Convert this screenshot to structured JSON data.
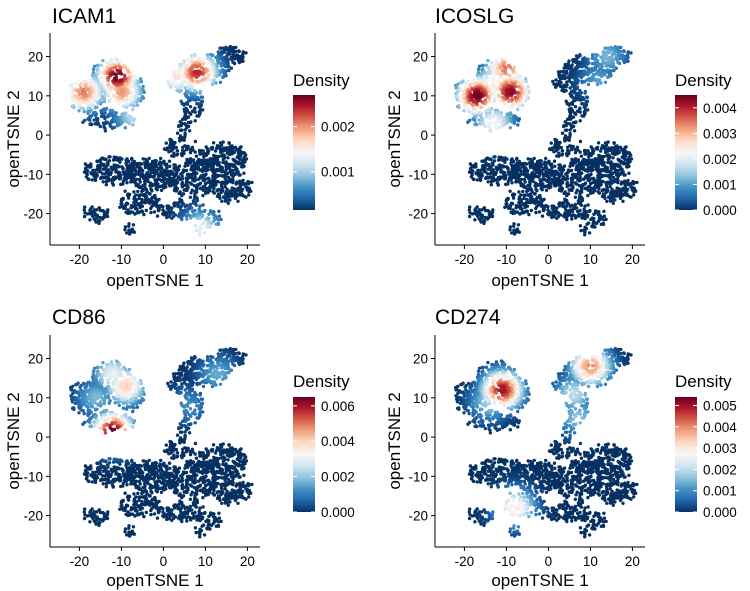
{
  "chart_data": [
    {
      "type": "scatter",
      "title": "ICAM1",
      "xlabel": "openTSNE 1",
      "ylabel": "openTSNE 2",
      "xlim": [
        -27,
        23
      ],
      "ylim": [
        -28,
        26
      ],
      "xticks": [
        -20,
        -10,
        0,
        10,
        20
      ],
      "yticks": [
        -20,
        -10,
        0,
        10,
        20
      ],
      "xtick_labels": [
        "-20",
        "-10",
        "0",
        "10",
        "20"
      ],
      "ytick_labels": [
        "-20",
        "-10",
        "0",
        "10",
        "20"
      ],
      "legend": {
        "title": "Density",
        "position": "right",
        "min": 0.00015,
        "max": 0.0027,
        "breaks": [
          0.001,
          0.002
        ],
        "labels": [
          "0.001",
          "0.002"
        ]
      },
      "hotspots": [
        {
          "x": -11,
          "y": 15,
          "density": 0.0027
        },
        {
          "x": -19,
          "y": 11,
          "density": 0.0021
        },
        {
          "x": -10,
          "y": 11,
          "density": 0.002
        },
        {
          "x": 8,
          "y": 16,
          "density": 0.0024
        },
        {
          "x": 3,
          "y": 15,
          "density": 0.0016
        },
        {
          "x": -7,
          "y": 5,
          "density": 0.0011
        },
        {
          "x": 9,
          "y": -24,
          "density": 0.0013
        }
      ],
      "grid": false
    },
    {
      "type": "scatter",
      "title": "ICOSLG",
      "xlabel": "openTSNE 1",
      "ylabel": "openTSNE 2",
      "xlim": [
        -27,
        23
      ],
      "ylim": [
        -28,
        26
      ],
      "xticks": [
        -20,
        -10,
        0,
        10,
        20
      ],
      "yticks": [
        -20,
        -10,
        0,
        10,
        20
      ],
      "xtick_labels": [
        "-20",
        "-10",
        "0",
        "10",
        "20"
      ],
      "ytick_labels": [
        "-20",
        "-10",
        "0",
        "10",
        "20"
      ],
      "legend": {
        "title": "Density",
        "position": "right",
        "min": 0.0,
        "max": 0.0045,
        "breaks": [
          0.0,
          0.001,
          0.002,
          0.003,
          0.004
        ],
        "labels": [
          "0.000",
          "0.001",
          "0.002",
          "0.003",
          "0.004"
        ]
      },
      "hotspots": [
        {
          "x": -17,
          "y": 10,
          "density": 0.0045
        },
        {
          "x": -9,
          "y": 11,
          "density": 0.0043
        },
        {
          "x": -10,
          "y": 17,
          "density": 0.0035
        },
        {
          "x": -13,
          "y": 13,
          "density": 0.0025
        },
        {
          "x": -13,
          "y": 3,
          "density": 0.0022
        },
        {
          "x": 14,
          "y": 20,
          "density": 0.0012
        },
        {
          "x": 12,
          "y": 14,
          "density": 0.001
        }
      ],
      "grid": false
    },
    {
      "type": "scatter",
      "title": "CD86",
      "xlabel": "openTSNE 1",
      "ylabel": "openTSNE 2",
      "xlim": [
        -27,
        23
      ],
      "ylim": [
        -28,
        26
      ],
      "xticks": [
        -20,
        -10,
        0,
        10,
        20
      ],
      "yticks": [
        -20,
        -10,
        0,
        10,
        20
      ],
      "xtick_labels": [
        "-20",
        "-10",
        "0",
        "10",
        "20"
      ],
      "ytick_labels": [
        "-20",
        "-10",
        "0",
        "10",
        "20"
      ],
      "legend": {
        "title": "Density",
        "position": "right",
        "min": 0.0,
        "max": 0.0065,
        "breaks": [
          0.0,
          0.002,
          0.004,
          0.006
        ],
        "labels": [
          "0.000",
          "0.002",
          "0.004",
          "0.006"
        ]
      },
      "hotspots": [
        {
          "x": -12,
          "y": 1.5,
          "density": 0.0065
        },
        {
          "x": -9,
          "y": 13,
          "density": 0.004
        },
        {
          "x": -12,
          "y": 16,
          "density": 0.003
        },
        {
          "x": -16,
          "y": 10,
          "density": 0.0018
        },
        {
          "x": 13,
          "y": 16,
          "density": 0.0016
        },
        {
          "x": 6,
          "y": 8,
          "density": 0.0012
        }
      ],
      "grid": false
    },
    {
      "type": "scatter",
      "title": "CD274",
      "xlabel": "openTSNE 1",
      "ylabel": "openTSNE 2",
      "xlim": [
        -27,
        23
      ],
      "ylim": [
        -28,
        26
      ],
      "xticks": [
        -20,
        -10,
        0,
        10,
        20
      ],
      "yticks": [
        -20,
        -10,
        0,
        10,
        20
      ],
      "xtick_labels": [
        "-20",
        "-10",
        "0",
        "10",
        "20"
      ],
      "ytick_labels": [
        "-20",
        "-10",
        "0",
        "10",
        "20"
      ],
      "legend": {
        "title": "Density",
        "position": "right",
        "min": 0.0,
        "max": 0.0054,
        "breaks": [
          0.0,
          0.001,
          0.002,
          0.003,
          0.004,
          0.005
        ],
        "labels": [
          "0.000",
          "0.001",
          "0.002",
          "0.003",
          "0.004",
          "0.005"
        ]
      },
      "hotspots": [
        {
          "x": -11,
          "y": 12,
          "density": 0.005
        },
        {
          "x": 10,
          "y": 18,
          "density": 0.004
        },
        {
          "x": -8,
          "y": -18,
          "density": 0.003
        },
        {
          "x": 6,
          "y": 11,
          "density": 0.002
        },
        {
          "x": -14,
          "y": 9,
          "density": 0.0018
        },
        {
          "x": 7,
          "y": 5,
          "density": 0.0016
        }
      ],
      "grid": false
    }
  ],
  "colors": {
    "scale": [
      "#053061",
      "#2166ac",
      "#4393c3",
      "#92c5de",
      "#d1e5f0",
      "#f7f7f7",
      "#fddbc7",
      "#f4a582",
      "#d6604d",
      "#b2182b",
      "#67001f"
    ],
    "axis": "#000000",
    "background": "#ffffff"
  }
}
